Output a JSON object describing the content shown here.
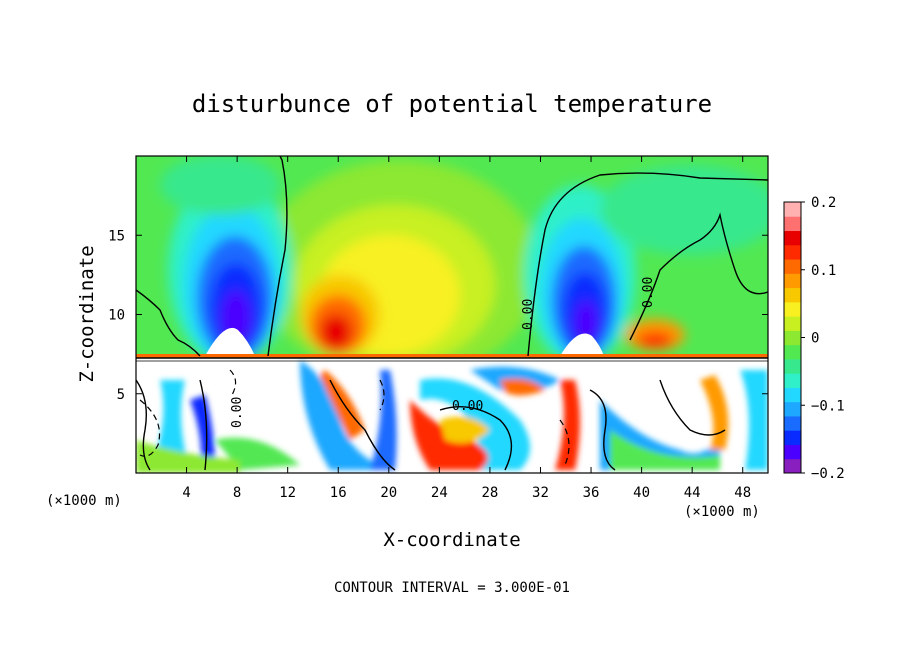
{
  "chart_data": {
    "type": "heatmap",
    "title": "disturbunce of potential temperature",
    "xlabel": "X-coordinate",
    "ylabel": "Z-coordinate",
    "x_unit_left": "(×1000 m)",
    "x_unit_right": "(×1000 m)",
    "footer": "CONTOUR INTERVAL = 3.000E-01",
    "xlim": [
      0,
      50
    ],
    "ylim": [
      0,
      20
    ],
    "x_ticks": [
      4,
      8,
      12,
      16,
      20,
      24,
      28,
      32,
      36,
      40,
      44,
      48
    ],
    "x_tick_labels": [
      "4",
      "8",
      "12",
      "16",
      "20",
      "24",
      "28",
      "32",
      "36",
      "40",
      "44",
      "48"
    ],
    "y_ticks": [
      5,
      10,
      15
    ],
    "y_tick_labels": [
      "5",
      "10",
      "15"
    ],
    "colorbar": {
      "range": [
        -0.2,
        0.2
      ],
      "tick_values": [
        0.2,
        0.1,
        0,
        -0.1,
        -0.2
      ],
      "tick_labels": [
        "0.2",
        "0.1",
        "0",
        "−0.1",
        "−0.2"
      ],
      "colors": [
        "#8a1fbf",
        "#4b00ff",
        "#0a2bff",
        "#1a6bff",
        "#1fa8ff",
        "#23d8ff",
        "#2ff0c8",
        "#37e88c",
        "#52e852",
        "#8ce830",
        "#c8f020",
        "#f8f020",
        "#f8c800",
        "#ff9a00",
        "#ff6a00",
        "#ff2a00",
        "#e80000",
        "#ff7070",
        "#ffb0b0"
      ]
    },
    "contour_labels": [
      "0.00",
      "0.00",
      "0.00",
      "0.00"
    ],
    "interface_height": 7.4,
    "field_features": [
      {
        "kind": "cold",
        "x": 6.5,
        "z": 11.0,
        "value": -0.19
      },
      {
        "kind": "cold",
        "x": 35.0,
        "z": 11.0,
        "value": -0.19
      },
      {
        "kind": "warm",
        "x": 16.5,
        "z": 9.5,
        "value": 0.12
      },
      {
        "kind": "warm",
        "x": 21.0,
        "z": 12.5,
        "value": 0.05
      },
      {
        "kind": "warm",
        "x": 41.5,
        "z": 9.0,
        "value": 0.1
      }
    ]
  }
}
